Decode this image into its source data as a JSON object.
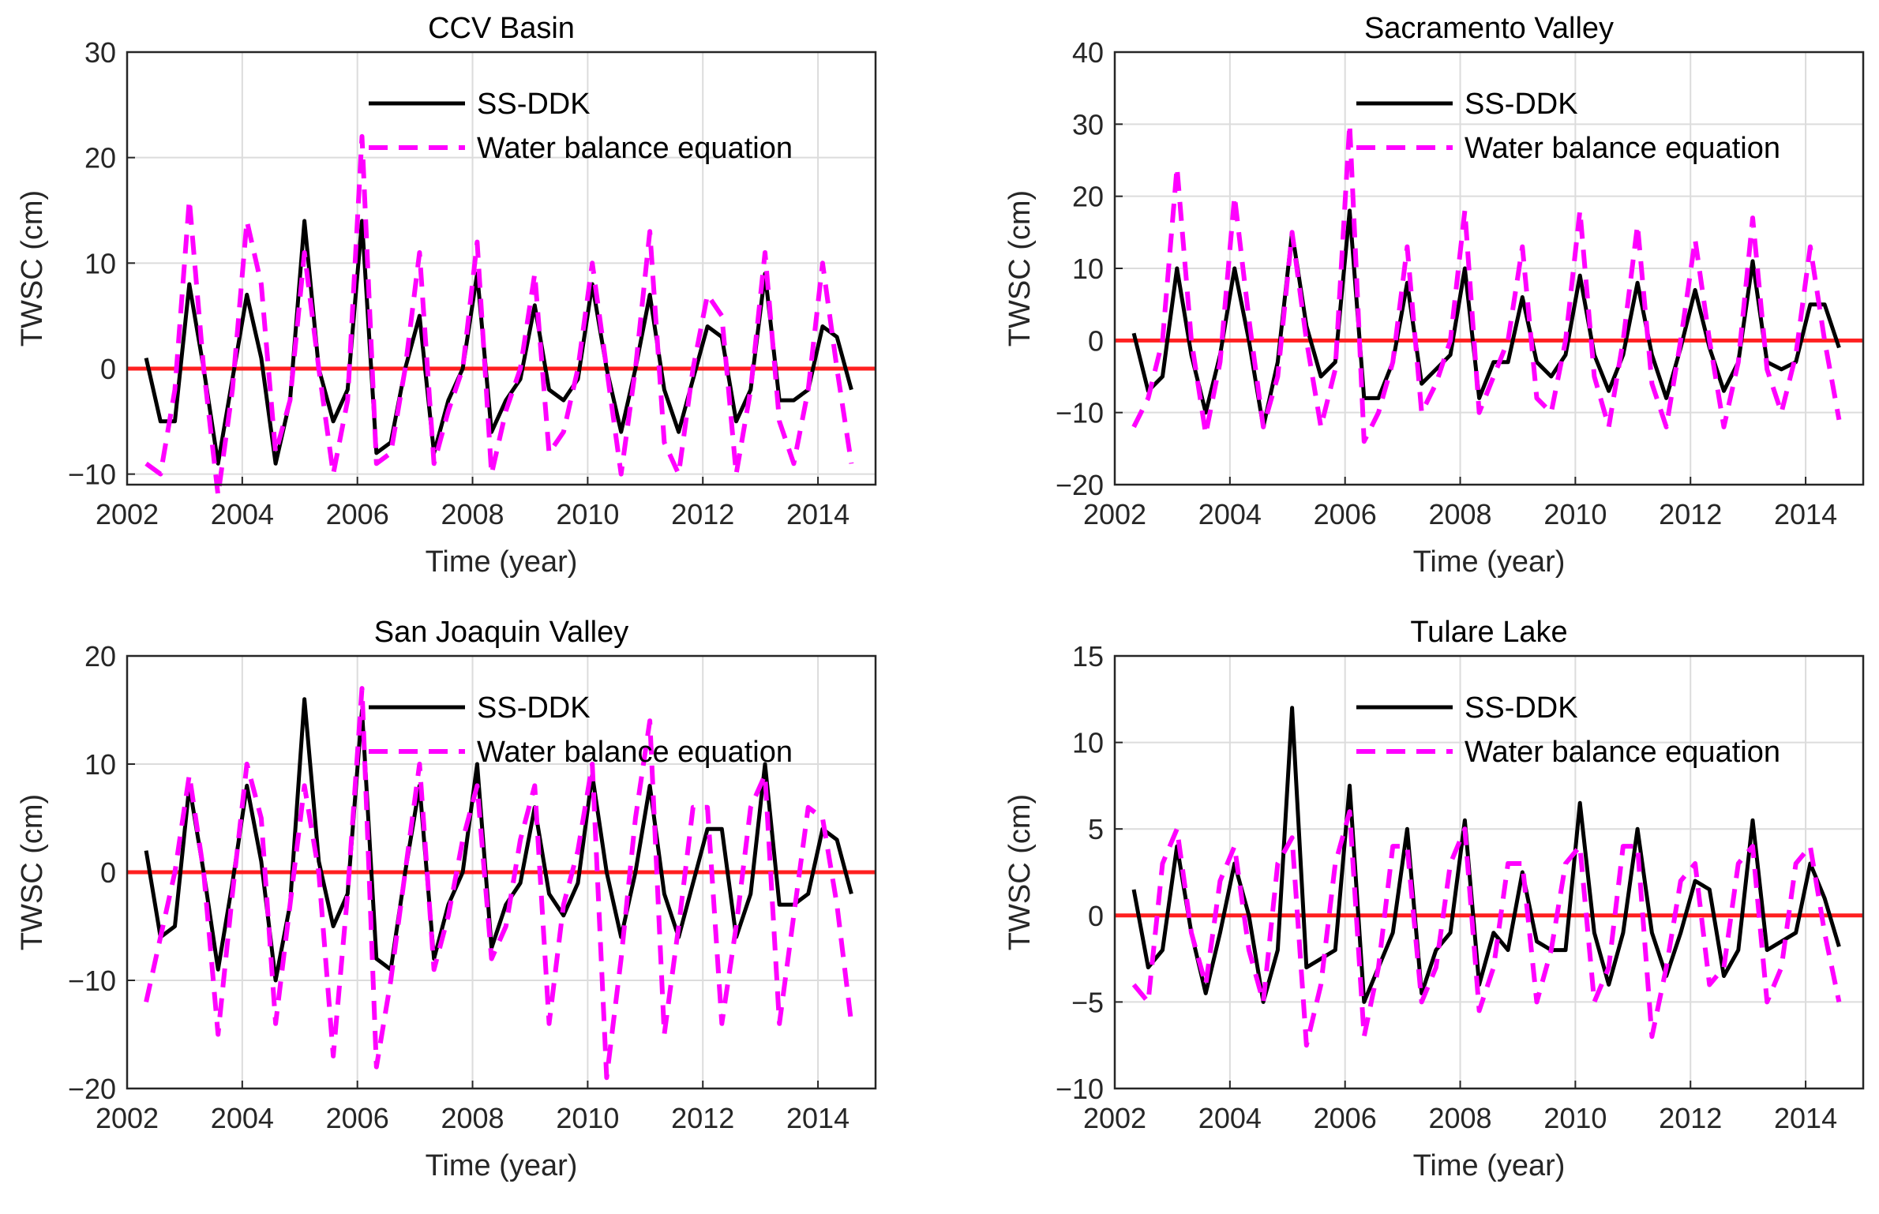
{
  "colors": {
    "ss_ddk": "#000000",
    "wbe": "#ff00ff",
    "zero_line": "#ff2020",
    "grid": "#dcdcdc",
    "axis": "#262626"
  },
  "chart_data": [
    {
      "type": "line",
      "title": "CCV Basin",
      "xlabel": "Time (year)",
      "ylabel": "TWSC (cm)",
      "xlim": [
        2002,
        2015
      ],
      "ylim": [
        -11,
        30
      ],
      "xticks": [
        2002,
        2004,
        2006,
        2008,
        2010,
        2012,
        2014
      ],
      "yticks": [
        -10,
        0,
        10,
        20,
        30
      ],
      "grid": true,
      "legend": "top-center",
      "x_start": 2002.33,
      "x_step": 0.25,
      "series": [
        {
          "name": "SS-DDK",
          "style": "solid",
          "values": [
            1,
            -5,
            -5,
            8,
            0,
            -9,
            -1,
            7,
            1,
            -9,
            -3,
            14,
            0,
            -5,
            -2,
            14,
            -8,
            -7,
            0,
            5,
            -8,
            -3,
            0,
            9,
            -6,
            -3,
            -1,
            6,
            -2,
            -3,
            -1,
            8,
            0,
            -6,
            0,
            7,
            -2,
            -6,
            -1,
            4,
            3,
            -5,
            -2,
            9,
            -3,
            -3,
            -2,
            4,
            3,
            -2
          ]
        },
        {
          "name": "Water balance equation",
          "style": "dashed",
          "values": [
            -9,
            -10,
            -2,
            16,
            0,
            -12,
            -2,
            14,
            8,
            -8,
            -3,
            11,
            0,
            -10,
            -3,
            22,
            -9,
            -8,
            0,
            11,
            -9,
            -4,
            0,
            12,
            -10,
            -4,
            0,
            9,
            -8,
            -6,
            0,
            10,
            0,
            -10,
            0,
            13,
            -7,
            -10,
            0,
            7,
            5,
            -10,
            -2,
            11,
            -5,
            -9,
            -2,
            10,
            0,
            -9
          ]
        }
      ]
    },
    {
      "type": "line",
      "title": "Sacramento Valley",
      "xlabel": "Time (year)",
      "ylabel": "TWSC (cm)",
      "xlim": [
        2002,
        2015
      ],
      "ylim": [
        -20,
        40
      ],
      "xticks": [
        2002,
        2004,
        2006,
        2008,
        2010,
        2012,
        2014
      ],
      "yticks": [
        -20,
        -10,
        0,
        10,
        20,
        30,
        40
      ],
      "grid": true,
      "legend": "top-center",
      "x_start": 2002.33,
      "x_step": 0.25,
      "series": [
        {
          "name": "SS-DDK",
          "style": "solid",
          "values": [
            1,
            -7,
            -5,
            10,
            -2,
            -10,
            -2,
            10,
            0,
            -12,
            -3,
            15,
            2,
            -5,
            -3,
            18,
            -8,
            -8,
            -3,
            8,
            -6,
            -4,
            -2,
            10,
            -8,
            -3,
            -3,
            6,
            -3,
            -5,
            -2,
            9,
            -2,
            -7,
            -2,
            8,
            -2,
            -8,
            -1,
            7,
            -1,
            -7,
            -3,
            11,
            -3,
            -4,
            -3,
            5,
            5,
            -1
          ]
        },
        {
          "name": "Water balance equation",
          "style": "dashed",
          "values": [
            -12,
            -8,
            0,
            24,
            0,
            -13,
            -3,
            20,
            3,
            -12,
            -5,
            15,
            0,
            -12,
            -4,
            30,
            -14,
            -10,
            -3,
            13,
            -10,
            -6,
            0,
            18,
            -10,
            -5,
            0,
            13,
            -8,
            -10,
            0,
            18,
            -5,
            -12,
            0,
            16,
            -6,
            -12,
            0,
            14,
            0,
            -12,
            -3,
            17,
            -4,
            -10,
            -2,
            13,
            0,
            -11
          ]
        }
      ]
    },
    {
      "type": "line",
      "title": "San Joaquin Valley",
      "xlabel": "Time (year)",
      "ylabel": "TWSC (cm)",
      "xlim": [
        2002,
        2015
      ],
      "ylim": [
        -20,
        20
      ],
      "xticks": [
        2002,
        2004,
        2006,
        2008,
        2010,
        2012,
        2014
      ],
      "yticks": [
        -20,
        -10,
        0,
        10,
        20
      ],
      "grid": true,
      "legend": "top-center",
      "x_start": 2002.33,
      "x_step": 0.25,
      "series": [
        {
          "name": "SS-DDK",
          "style": "solid",
          "values": [
            2,
            -6,
            -5,
            8,
            0,
            -9,
            -1,
            8,
            1,
            -10,
            -3,
            16,
            1,
            -5,
            -2,
            15,
            -8,
            -9,
            0,
            8,
            -8,
            -3,
            0,
            10,
            -7,
            -3,
            -1,
            6,
            -2,
            -4,
            -1,
            9,
            0,
            -6,
            0,
            8,
            -2,
            -6,
            -1,
            4,
            4,
            -6,
            -2,
            10,
            -3,
            -3,
            -2,
            4,
            3,
            -2
          ]
        },
        {
          "name": "Water balance equation",
          "style": "dashed",
          "values": [
            -12,
            -6,
            0,
            9,
            0,
            -15,
            -2,
            10,
            5,
            -14,
            -3,
            8,
            0,
            -17,
            -2,
            17,
            -18,
            -10,
            0,
            10,
            -9,
            -4,
            3,
            8,
            -8,
            -5,
            3,
            8,
            -14,
            -3,
            2,
            10,
            -19,
            -8,
            5,
            14,
            -15,
            -5,
            6,
            6,
            -14,
            -5,
            6,
            9,
            -14,
            -4,
            6,
            5,
            -3,
            -14
          ]
        }
      ]
    },
    {
      "type": "line",
      "title": "Tulare Lake",
      "xlabel": "Time (year)",
      "ylabel": "TWSC (cm)",
      "xlim": [
        2002,
        2015
      ],
      "ylim": [
        -10,
        15
      ],
      "xticks": [
        2002,
        2004,
        2006,
        2008,
        2010,
        2012,
        2014
      ],
      "yticks": [
        -10,
        -5,
        0,
        5,
        10,
        15
      ],
      "grid": true,
      "legend": "top-center",
      "x_start": 2002.33,
      "x_step": 0.25,
      "series": [
        {
          "name": "SS-DDK",
          "style": "solid",
          "values": [
            1.5,
            -3,
            -2,
            4,
            -1,
            -4.5,
            -1,
            3,
            0,
            -5,
            -2,
            12,
            -3,
            -2.5,
            -2,
            7.5,
            -5,
            -3,
            -1,
            5,
            -4.5,
            -2,
            -1,
            5.5,
            -4,
            -1,
            -2,
            2.5,
            -1.5,
            -2,
            -2,
            6.5,
            -1,
            -4,
            -1,
            5,
            -1,
            -3.5,
            -1,
            2,
            1.5,
            -3.5,
            -2,
            5.5,
            -2,
            -1.5,
            -1,
            3,
            1,
            -1.8
          ]
        },
        {
          "name": "Water balance equation",
          "style": "dashed",
          "values": [
            -4,
            -5,
            3,
            5,
            -1,
            -4,
            2,
            4,
            -2,
            -5,
            3,
            4.5,
            -7.5,
            -4,
            3,
            6,
            -7,
            -3,
            4,
            4,
            -5,
            -3,
            3,
            5,
            -5.5,
            -3,
            3,
            3,
            -5,
            -2,
            3,
            4,
            -5,
            -3,
            4,
            4,
            -7,
            -3,
            2,
            3,
            -4,
            -3,
            3,
            4,
            -5,
            -3,
            3,
            4,
            -1,
            -5
          ]
        }
      ]
    }
  ]
}
